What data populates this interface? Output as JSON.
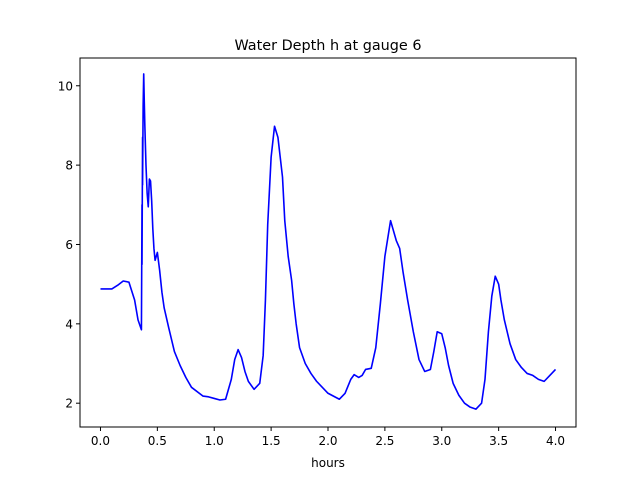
{
  "chart_data": {
    "type": "line",
    "title": "Water Depth h at gauge 6",
    "xlabel": "hours",
    "ylabel": "",
    "xlim": [
      -0.18,
      4.18
    ],
    "ylim": [
      1.4,
      10.7
    ],
    "x_ticks": [
      0.0,
      0.5,
      1.0,
      1.5,
      2.0,
      2.5,
      3.0,
      3.5,
      4.0
    ],
    "x_tick_labels": [
      "0.0",
      "0.5",
      "1.0",
      "1.5",
      "2.0",
      "2.5",
      "3.0",
      "3.5",
      "4.0"
    ],
    "y_ticks": [
      2,
      4,
      6,
      8,
      10
    ],
    "y_tick_labels": [
      "2",
      "4",
      "6",
      "8",
      "10"
    ],
    "grid": false,
    "series": [
      {
        "color": "#0000ff",
        "x": [
          0.0,
          0.1,
          0.15,
          0.2,
          0.25,
          0.3,
          0.33,
          0.36,
          0.365,
          0.365,
          0.37,
          0.37,
          0.375,
          0.38,
          0.385,
          0.39,
          0.4,
          0.41,
          0.42,
          0.43,
          0.44,
          0.45,
          0.46,
          0.47,
          0.48,
          0.5,
          0.52,
          0.54,
          0.56,
          0.6,
          0.65,
          0.7,
          0.75,
          0.8,
          0.9,
          0.95,
          1.0,
          1.05,
          1.1,
          1.15,
          1.18,
          1.21,
          1.24,
          1.27,
          1.3,
          1.35,
          1.4,
          1.43,
          1.45,
          1.47,
          1.5,
          1.53,
          1.56,
          1.58,
          1.6,
          1.62,
          1.65,
          1.68,
          1.7,
          1.72,
          1.75,
          1.8,
          1.85,
          1.9,
          2.0,
          2.1,
          2.15,
          2.2,
          2.23,
          2.27,
          2.3,
          2.33,
          2.38,
          2.42,
          2.46,
          2.5,
          2.55,
          2.6,
          2.63,
          2.66,
          2.7,
          2.75,
          2.8,
          2.85,
          2.9,
          2.93,
          2.96,
          3.0,
          3.03,
          3.06,
          3.1,
          3.15,
          3.2,
          3.25,
          3.3,
          3.35,
          3.38,
          3.41,
          3.44,
          3.47,
          3.5,
          3.52,
          3.55,
          3.6,
          3.65,
          3.7,
          3.75,
          3.8,
          3.85,
          3.9,
          3.95,
          4.0
        ],
        "y": [
          4.88,
          4.88,
          4.97,
          5.08,
          5.05,
          4.6,
          4.1,
          3.85,
          7.0,
          5.5,
          8.7,
          7.5,
          9.5,
          10.3,
          9.6,
          9.0,
          8.0,
          7.3,
          6.95,
          7.65,
          7.6,
          7.1,
          6.4,
          5.9,
          5.6,
          5.8,
          5.35,
          4.8,
          4.4,
          3.9,
          3.3,
          2.95,
          2.65,
          2.4,
          2.18,
          2.16,
          2.12,
          2.08,
          2.1,
          2.6,
          3.1,
          3.35,
          3.15,
          2.8,
          2.55,
          2.35,
          2.5,
          3.2,
          4.6,
          6.5,
          8.2,
          8.98,
          8.7,
          8.2,
          7.7,
          6.6,
          5.7,
          5.1,
          4.5,
          4.0,
          3.4,
          3.0,
          2.75,
          2.55,
          2.25,
          2.1,
          2.25,
          2.6,
          2.72,
          2.65,
          2.7,
          2.85,
          2.88,
          3.4,
          4.5,
          5.7,
          6.6,
          6.1,
          5.9,
          5.3,
          4.6,
          3.8,
          3.1,
          2.8,
          2.85,
          3.3,
          3.8,
          3.75,
          3.4,
          2.95,
          2.5,
          2.2,
          2.0,
          1.9,
          1.85,
          2.0,
          2.6,
          3.8,
          4.7,
          5.2,
          5.0,
          4.6,
          4.1,
          3.5,
          3.1,
          2.9,
          2.75,
          2.7,
          2.6,
          2.55,
          2.7,
          2.85
        ]
      }
    ]
  }
}
